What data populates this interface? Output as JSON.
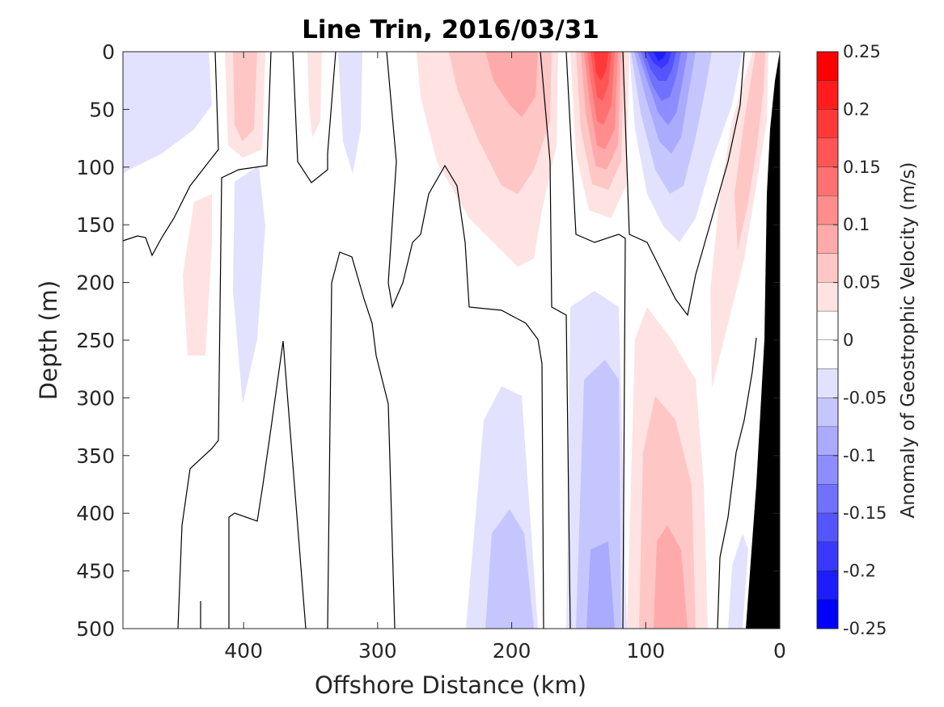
{
  "chart_data": {
    "type": "heatmap",
    "title": "Line Trin, 2016/03/31",
    "xlabel": "Offshore Distance (km)",
    "ylabel": "Depth (m)",
    "colorbar_label": "Anomaly of Geostrophic Velocity (m/s)",
    "xlim": [
      490,
      0
    ],
    "ylim": [
      0,
      500
    ],
    "x_ticks": [
      400,
      300,
      200,
      100,
      0
    ],
    "x_tick_labels": [
      "400",
      "300",
      "200",
      "100",
      "0"
    ],
    "y_ticks": [
      0,
      50,
      100,
      150,
      200,
      250,
      300,
      350,
      400,
      450,
      500
    ],
    "y_tick_labels": [
      "0",
      "50",
      "100",
      "150",
      "200",
      "250",
      "300",
      "350",
      "400",
      "450",
      "500"
    ],
    "colorbar": {
      "min": -0.25,
      "max": 0.25,
      "ticks": [
        0.25,
        0.2,
        0.15,
        0.1,
        0.05,
        0,
        -0.05,
        -0.1,
        -0.15,
        -0.2,
        -0.25
      ],
      "tick_labels": [
        "0.25",
        "0.2",
        "0.15",
        "0.1",
        "0.05",
        "0",
        "-0.05",
        "-0.1",
        "-0.15",
        "-0.2",
        "-0.25"
      ],
      "levels": [
        {
          "from": 0.225,
          "to": 0.25,
          "color": "#ff0000"
        },
        {
          "from": 0.2,
          "to": 0.225,
          "color": "#ff1c1c"
        },
        {
          "from": 0.175,
          "to": 0.2,
          "color": "#ff3838"
        },
        {
          "from": 0.15,
          "to": 0.175,
          "color": "#ff5555"
        },
        {
          "from": 0.125,
          "to": 0.15,
          "color": "#ff7171"
        },
        {
          "from": 0.1,
          "to": 0.125,
          "color": "#ff8d8d"
        },
        {
          "from": 0.075,
          "to": 0.1,
          "color": "#ffaaaa"
        },
        {
          "from": 0.05,
          "to": 0.075,
          "color": "#ffc6c6"
        },
        {
          "from": 0.025,
          "to": 0.05,
          "color": "#ffe2e2"
        },
        {
          "from": 0.0,
          "to": 0.025,
          "color": "#ffffff"
        },
        {
          "from": -0.025,
          "to": 0.0,
          "color": "#ffffff"
        },
        {
          "from": -0.05,
          "to": -0.025,
          "color": "#e2e2ff"
        },
        {
          "from": -0.075,
          "to": -0.05,
          "color": "#c6c6ff"
        },
        {
          "from": -0.1,
          "to": -0.075,
          "color": "#aaaaff"
        },
        {
          "from": -0.125,
          "to": -0.1,
          "color": "#8d8dff"
        },
        {
          "from": -0.15,
          "to": -0.125,
          "color": "#7171ff"
        },
        {
          "from": -0.175,
          "to": -0.15,
          "color": "#5555ff"
        },
        {
          "from": -0.2,
          "to": -0.175,
          "color": "#3838ff"
        },
        {
          "from": -0.225,
          "to": -0.2,
          "color": "#1c1cff"
        },
        {
          "from": -0.25,
          "to": -0.225,
          "color": "#0000ff"
        }
      ]
    },
    "features": [
      {
        "name": "positive core",
        "x": 135,
        "depth_range": [
          0,
          140
        ],
        "max_value": 0.2
      },
      {
        "name": "negative core",
        "x": 90,
        "depth_range": [
          0,
          190
        ],
        "min_value": -0.2
      },
      {
        "name": "positive band",
        "x": 200,
        "depth_range": [
          0,
          230
        ],
        "max_value": 0.075
      },
      {
        "name": "negative band deep",
        "x": 135,
        "depth_range": [
          210,
          500
        ],
        "min_value": -0.125
      },
      {
        "name": "negative band deep",
        "x": 210,
        "depth_range": [
          290,
          500
        ],
        "min_value": -0.075
      },
      {
        "name": "positive band deep",
        "x": 90,
        "depth_range": [
          280,
          500
        ],
        "max_value": 0.1
      },
      {
        "name": "positive shelf",
        "x": 30,
        "depth_range": [
          0,
          290
        ],
        "max_value": 0.075
      },
      {
        "name": "negative offshore",
        "x": 470,
        "depth_range": [
          0,
          120
        ],
        "min_value": -0.05
      },
      {
        "name": "positive offshore",
        "x": 400,
        "depth_range": [
          0,
          90
        ],
        "max_value": 0.1
      },
      {
        "name": "negative offshore mid",
        "x": 395,
        "depth_range": [
          120,
          300
        ],
        "min_value": -0.05
      },
      {
        "name": "positive offshore mid",
        "x": 440,
        "depth_range": [
          130,
          260
        ],
        "max_value": 0.05
      }
    ],
    "bathymetry_color": "#000000",
    "contour_color": "#000000",
    "zero_contour": true,
    "grid": false
  }
}
